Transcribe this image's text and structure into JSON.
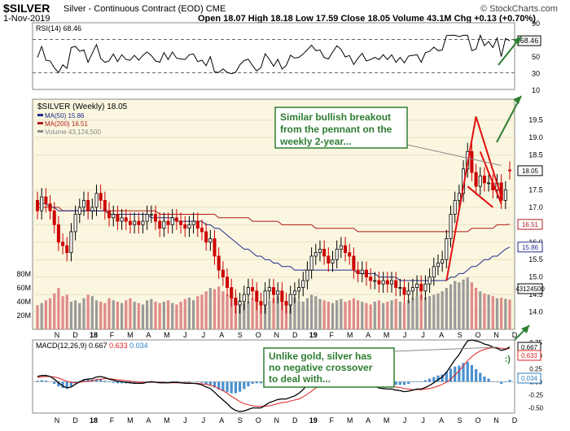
{
  "header": {
    "symbol": "$SILVER",
    "description": "Silver - Continuous Contract (EOD)",
    "exchange": "CME",
    "date": "1-Nov-2019",
    "ohlc": "Open 18.07  High 18.18  Low 17.59  Close 18.05  Volume 43.1M  Chg +0.13 (+0.70%)",
    "credit": "© StockCharts.com"
  },
  "colors": {
    "up": "#000000",
    "down": "#cc0000",
    "ma50": "#1f2a8c",
    "ma200": "#b01818",
    "rsi_fill": "#2e7d32",
    "annotation_red": "#e01010",
    "annotation_green": "#2e7d32",
    "macd_hist": "#4a90d0",
    "signal": "#e02020",
    "panel_bg": "#faf6df",
    "callout_border": "#2e7d32"
  },
  "chart_data": [
    {
      "type": "line",
      "panel": "rsi",
      "legend": "RSI(14) 68.46",
      "value": 68.46,
      "scale": [
        10,
        90
      ],
      "ticks": [
        "90",
        "70",
        "50",
        "30",
        "10"
      ],
      "levels": [
        70,
        30
      ],
      "badge": "68.46"
    },
    {
      "type": "candlestick",
      "panel": "price",
      "title": "$SILVER (Weekly) 18.05",
      "legend": [
        {
          "name": "MA(50) 15.86",
          "color": "#1f2a8c"
        },
        {
          "name": "MA(200) 16.51",
          "color": "#b01818"
        },
        {
          "name": "Volume 43,124,500",
          "color": "#888888"
        }
      ],
      "ylim": [
        13.5,
        20.1
      ],
      "yticks": [
        "19.5",
        "19.0",
        "18.5",
        "17.5",
        "17.0",
        "16.5",
        "16.0",
        "15.5",
        "15.0",
        "14.5",
        "14.0"
      ],
      "volume_ticks": [
        "80M",
        "60M",
        "40M",
        "20M"
      ],
      "badges": {
        "close": "18.05",
        "ma200": "16.51",
        "ma50": "15.86",
        "volume": "43124500"
      },
      "weeks": 113,
      "close": [
        16.9,
        17.3,
        17.1,
        16.9,
        16.5,
        16.0,
        15.9,
        15.7,
        16.3,
        16.8,
        17.0,
        17.2,
        16.9,
        17.0,
        17.4,
        17.2,
        16.9,
        16.7,
        16.8,
        16.6,
        16.7,
        16.6,
        16.5,
        16.6,
        16.5,
        16.6,
        16.8,
        16.8,
        16.6,
        16.4,
        16.6,
        16.5,
        16.7,
        16.6,
        16.5,
        16.4,
        16.5,
        16.6,
        16.4,
        16.3,
        16.0,
        16.1,
        15.6,
        15.2,
        15.0,
        14.7,
        14.4,
        14.2,
        14.3,
        14.5,
        14.7,
        14.6,
        14.3,
        14.2,
        14.6,
        14.7,
        14.5,
        14.6,
        14.3,
        14.2,
        14.5,
        14.6,
        14.7,
        14.9,
        15.2,
        15.6,
        15.7,
        15.8,
        15.6,
        15.4,
        15.5,
        15.8,
        15.9,
        15.7,
        15.6,
        15.2,
        15.1,
        15.2,
        15.0,
        14.9,
        14.9,
        14.8,
        14.9,
        14.8,
        14.9,
        14.7,
        14.7,
        14.5,
        14.6,
        14.7,
        14.8,
        14.6,
        14.8,
        15.0,
        15.3,
        15.4,
        15.5,
        16.1,
        16.8,
        17.2,
        17.4,
        18.1,
        18.6,
        18.0,
        17.6,
        17.9,
        17.7,
        17.7,
        17.5,
        17.7,
        17.2,
        17.5,
        18.05
      ],
      "open": [
        17.2,
        16.9,
        17.3,
        17.1,
        16.9,
        16.5,
        16.0,
        15.9,
        15.7,
        16.3,
        16.8,
        17.0,
        17.2,
        16.9,
        17.0,
        17.4,
        17.2,
        16.9,
        16.7,
        16.8,
        16.6,
        16.7,
        16.6,
        16.5,
        16.6,
        16.5,
        16.6,
        16.8,
        16.8,
        16.6,
        16.4,
        16.6,
        16.5,
        16.7,
        16.6,
        16.5,
        16.4,
        16.5,
        16.6,
        16.4,
        16.3,
        16.0,
        16.1,
        15.6,
        15.2,
        15.0,
        14.7,
        14.4,
        14.2,
        14.3,
        14.5,
        14.7,
        14.6,
        14.3,
        14.2,
        14.6,
        14.7,
        14.5,
        14.6,
        14.3,
        14.2,
        14.5,
        14.6,
        14.7,
        14.9,
        15.2,
        15.6,
        15.7,
        15.8,
        15.6,
        15.4,
        15.5,
        15.8,
        15.9,
        15.7,
        15.6,
        15.2,
        15.1,
        15.2,
        15.0,
        14.9,
        14.9,
        14.8,
        14.9,
        14.8,
        14.9,
        14.7,
        14.7,
        14.5,
        14.6,
        14.7,
        14.8,
        14.6,
        14.8,
        15.0,
        15.3,
        15.4,
        15.5,
        16.1,
        16.8,
        17.2,
        17.4,
        18.1,
        18.6,
        18.0,
        17.6,
        17.9,
        17.7,
        17.7,
        17.5,
        17.7,
        17.2,
        18.07
      ],
      "volume_m": [
        35,
        38,
        42,
        45,
        52,
        60,
        48,
        50,
        40,
        42,
        38,
        45,
        50,
        48,
        42,
        40,
        38,
        45,
        42,
        40,
        38,
        42,
        45,
        40,
        38,
        36,
        42,
        44,
        40,
        38,
        40,
        42,
        38,
        36,
        40,
        44,
        46,
        42,
        48,
        50,
        55,
        60,
        58,
        62,
        55,
        50,
        45,
        40,
        42,
        38,
        40,
        45,
        42,
        40,
        38,
        42,
        45,
        48,
        42,
        40,
        44,
        46,
        42,
        40,
        45,
        50,
        48,
        44,
        42,
        40,
        38,
        42,
        44,
        40,
        42,
        45,
        42,
        40,
        38,
        36,
        40,
        42,
        38,
        40,
        42,
        44,
        40,
        38,
        42,
        45,
        48,
        50,
        46,
        48,
        50,
        52,
        55,
        60,
        65,
        70,
        68,
        72,
        75,
        68,
        60,
        55,
        52,
        50,
        48,
        45,
        46,
        44,
        43.1
      ],
      "ma50": [
        17.1,
        17.1,
        17.1,
        17.0,
        17.0,
        16.9,
        16.9,
        16.9,
        16.9,
        16.9,
        16.9,
        16.9,
        16.9,
        16.9,
        16.9,
        16.9,
        16.9,
        16.8,
        16.8,
        16.8,
        16.8,
        16.8,
        16.8,
        16.8,
        16.8,
        16.8,
        16.8,
        16.7,
        16.7,
        16.7,
        16.7,
        16.7,
        16.7,
        16.6,
        16.6,
        16.6,
        16.6,
        16.6,
        16.6,
        16.6,
        16.5,
        16.5,
        16.4,
        16.4,
        16.3,
        16.2,
        16.1,
        16.0,
        15.9,
        15.8,
        15.8,
        15.7,
        15.6,
        15.6,
        15.5,
        15.5,
        15.4,
        15.4,
        15.3,
        15.3,
        15.3,
        15.2,
        15.2,
        15.2,
        15.2,
        15.2,
        15.2,
        15.2,
        15.2,
        15.2,
        15.2,
        15.2,
        15.2,
        15.2,
        15.2,
        15.2,
        15.1,
        15.1,
        15.1,
        15.1,
        15.1,
        15.0,
        15.0,
        15.0,
        15.0,
        15.0,
        14.9,
        14.9,
        14.9,
        14.9,
        14.9,
        14.9,
        14.9,
        14.9,
        14.9,
        14.9,
        14.9,
        14.9,
        15.0,
        15.0,
        15.1,
        15.1,
        15.2,
        15.3,
        15.3,
        15.4,
        15.5,
        15.5,
        15.6,
        15.6,
        15.7,
        15.8,
        15.86
      ],
      "ma200": [
        17.0,
        17.0,
        17.0,
        17.0,
        17.0,
        17.0,
        16.9,
        16.9,
        16.9,
        16.9,
        16.9,
        16.9,
        16.9,
        16.9,
        16.9,
        16.9,
        16.9,
        16.9,
        16.9,
        16.9,
        16.9,
        16.9,
        16.9,
        16.9,
        16.9,
        16.9,
        16.9,
        16.9,
        16.9,
        16.8,
        16.8,
        16.8,
        16.8,
        16.8,
        16.8,
        16.8,
        16.8,
        16.8,
        16.8,
        16.8,
        16.8,
        16.8,
        16.8,
        16.7,
        16.7,
        16.7,
        16.7,
        16.7,
        16.7,
        16.7,
        16.7,
        16.6,
        16.6,
        16.6,
        16.6,
        16.6,
        16.6,
        16.6,
        16.5,
        16.5,
        16.5,
        16.5,
        16.5,
        16.5,
        16.5,
        16.5,
        16.4,
        16.4,
        16.4,
        16.4,
        16.4,
        16.4,
        16.4,
        16.4,
        16.4,
        16.4,
        16.3,
        16.3,
        16.3,
        16.3,
        16.3,
        16.3,
        16.3,
        16.3,
        16.3,
        16.3,
        16.3,
        16.3,
        16.3,
        16.3,
        16.3,
        16.3,
        16.3,
        16.3,
        16.3,
        16.3,
        16.3,
        16.3,
        16.3,
        16.3,
        16.3,
        16.3,
        16.3,
        16.4,
        16.4,
        16.4,
        16.4,
        16.4,
        16.4,
        16.5,
        16.5,
        16.5,
        16.51
      ],
      "callout": "Similar bullish breakout from the pennant on the weekly 2-year..."
    },
    {
      "type": "line",
      "panel": "macd",
      "legend_label": "MACD(12,26,9)",
      "values": [
        "0.667",
        "0.633",
        "0.034"
      ],
      "ylim": [
        -0.6,
        0.8
      ],
      "yticks": [
        "0.75",
        "0.50",
        "0.25",
        "0.00",
        "-0.25",
        "-0.50"
      ],
      "badges": [
        "0.667",
        "0.633",
        "0.034"
      ],
      "macd": [
        0.1,
        0.12,
        0.12,
        0.1,
        0.05,
        -0.02,
        -0.08,
        -0.12,
        -0.1,
        -0.05,
        0.0,
        0.04,
        0.05,
        0.06,
        0.09,
        0.1,
        0.08,
        0.05,
        0.03,
        0.01,
        0.0,
        -0.01,
        -0.02,
        -0.03,
        -0.03,
        -0.03,
        -0.01,
        0.0,
        -0.01,
        -0.02,
        -0.02,
        -0.02,
        -0.01,
        -0.01,
        -0.02,
        -0.03,
        -0.03,
        -0.03,
        -0.04,
        -0.06,
        -0.1,
        -0.13,
        -0.2,
        -0.28,
        -0.35,
        -0.42,
        -0.5,
        -0.55,
        -0.57,
        -0.56,
        -0.53,
        -0.5,
        -0.5,
        -0.5,
        -0.45,
        -0.4,
        -0.37,
        -0.34,
        -0.33,
        -0.33,
        -0.3,
        -0.27,
        -0.22,
        -0.15,
        -0.05,
        0.05,
        0.13,
        0.18,
        0.2,
        0.19,
        0.18,
        0.2,
        0.21,
        0.2,
        0.18,
        0.12,
        0.06,
        0.03,
        -0.02,
        -0.06,
        -0.09,
        -0.12,
        -0.13,
        -0.14,
        -0.14,
        -0.16,
        -0.17,
        -0.19,
        -0.18,
        -0.16,
        -0.14,
        -0.14,
        -0.11,
        -0.07,
        -0.02,
        0.04,
        0.09,
        0.18,
        0.3,
        0.42,
        0.52,
        0.66,
        0.78,
        0.8,
        0.78,
        0.76,
        0.72,
        0.7,
        0.66,
        0.64,
        0.6,
        0.62,
        0.667
      ],
      "signal": [
        0.08,
        0.09,
        0.1,
        0.1,
        0.09,
        0.07,
        0.04,
        0.01,
        -0.01,
        -0.02,
        -0.01,
        0.0,
        0.01,
        0.02,
        0.04,
        0.05,
        0.06,
        0.06,
        0.05,
        0.04,
        0.03,
        0.02,
        0.01,
        0.0,
        -0.01,
        -0.01,
        -0.01,
        -0.01,
        -0.01,
        -0.01,
        -0.01,
        -0.02,
        -0.02,
        -0.02,
        -0.02,
        -0.02,
        -0.02,
        -0.03,
        -0.03,
        -0.04,
        -0.05,
        -0.07,
        -0.09,
        -0.13,
        -0.17,
        -0.22,
        -0.28,
        -0.33,
        -0.38,
        -0.42,
        -0.44,
        -0.46,
        -0.47,
        -0.47,
        -0.47,
        -0.46,
        -0.44,
        -0.42,
        -0.4,
        -0.39,
        -0.37,
        -0.35,
        -0.33,
        -0.29,
        -0.24,
        -0.18,
        -0.12,
        -0.06,
        -0.01,
        0.03,
        0.06,
        0.09,
        0.11,
        0.13,
        0.14,
        0.14,
        0.12,
        0.11,
        0.08,
        0.05,
        0.02,
        -0.01,
        -0.04,
        -0.06,
        -0.08,
        -0.1,
        -0.11,
        -0.13,
        -0.14,
        -0.15,
        -0.15,
        -0.15,
        -0.14,
        -0.13,
        -0.11,
        -0.08,
        -0.05,
        -0.01,
        0.05,
        0.13,
        0.21,
        0.3,
        0.4,
        0.48,
        0.54,
        0.59,
        0.62,
        0.64,
        0.65,
        0.65,
        0.64,
        0.63,
        0.633
      ],
      "callout": "Unlike gold, silver has no negative crossover to deal with..."
    }
  ],
  "annotations": {
    "smiley": ":)"
  },
  "x_axis_labels": [
    "N",
    "D",
    "18",
    "F",
    "M",
    "A",
    "M",
    "J",
    "J",
    "A",
    "S",
    "O",
    "N",
    "D",
    "19",
    "F",
    "M",
    "A",
    "M",
    "J",
    "J",
    "A",
    "S",
    "O",
    "N",
    "D"
  ]
}
